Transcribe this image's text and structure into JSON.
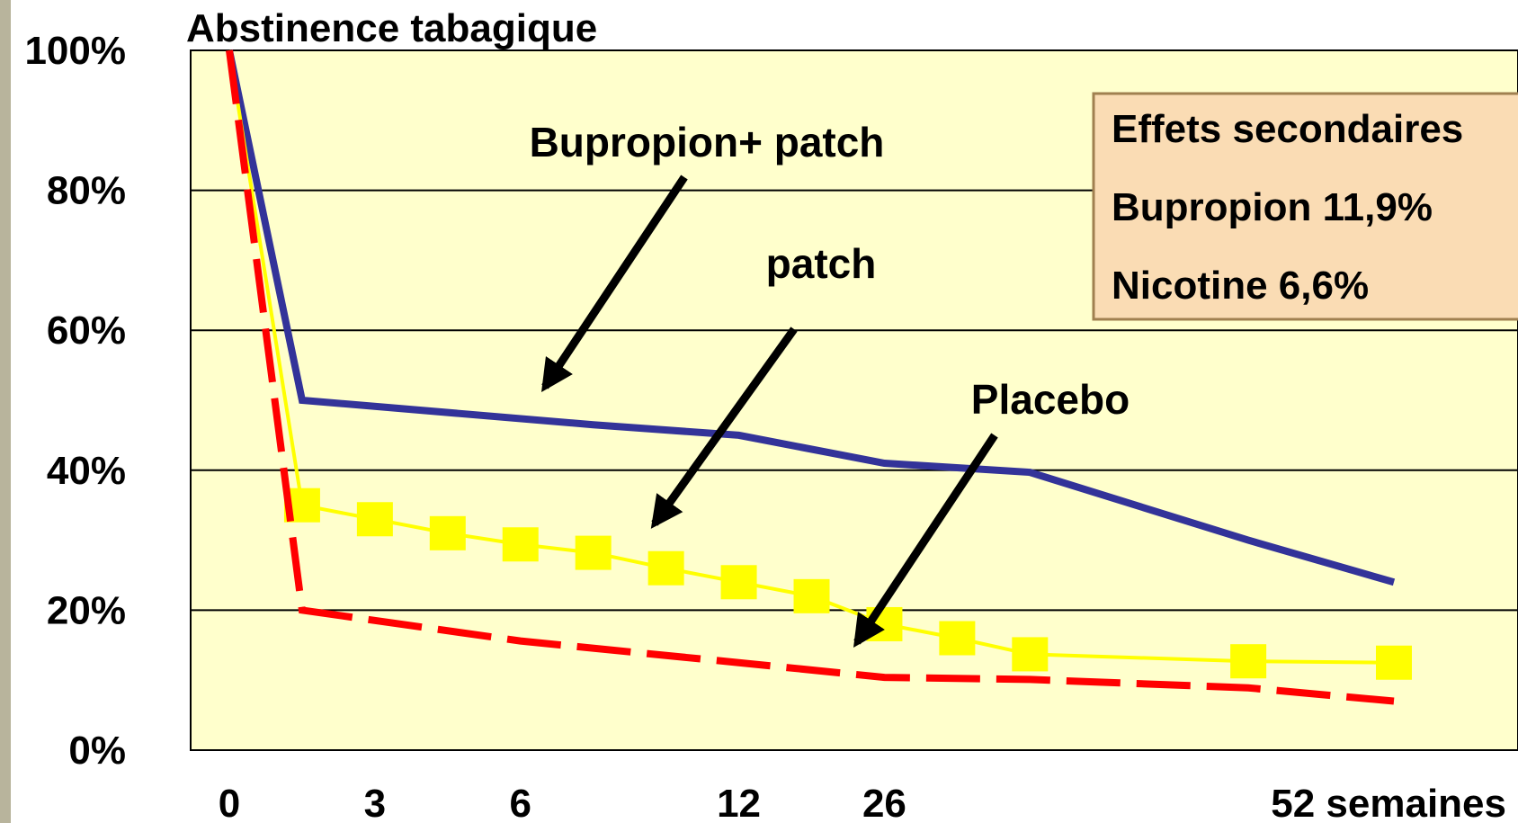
{
  "chart_data": {
    "type": "line",
    "title": "Abstinence tabagique",
    "ylim": [
      0,
      100
    ],
    "yticks": [
      {
        "value": 0,
        "label": "0%"
      },
      {
        "value": 20,
        "label": "20%"
      },
      {
        "value": 40,
        "label": "40%"
      },
      {
        "value": 60,
        "label": "60%"
      },
      {
        "value": 80,
        "label": "80%"
      },
      {
        "value": 100,
        "label": "100%"
      }
    ],
    "xlim": [
      0,
      16
    ],
    "xticks": [
      {
        "value": 0,
        "label": "0"
      },
      {
        "value": 2,
        "label": "3"
      },
      {
        "value": 4,
        "label": "6"
      },
      {
        "value": 7,
        "label": "12"
      },
      {
        "value": 9,
        "label": "26"
      },
      {
        "value": 16,
        "label": "52 semaines"
      }
    ],
    "grid": true,
    "series": [
      {
        "name": "Bupropion+ patch",
        "color": "#333399",
        "x": [
          0,
          1,
          5,
          7,
          9,
          11,
          14,
          16
        ],
        "values": [
          100,
          50,
          46.5,
          45,
          41,
          39.7,
          30,
          24
        ]
      },
      {
        "name": "patch",
        "color": "#ffff00",
        "marker": "square",
        "x": [
          0,
          1,
          2,
          3,
          4,
          5,
          6,
          7,
          8,
          9,
          10,
          11,
          14,
          16
        ],
        "values": [
          100,
          35,
          33,
          31,
          29.4,
          28.2,
          26,
          24,
          22,
          18,
          16,
          13.7,
          12.7,
          12.5
        ]
      },
      {
        "name": "Placebo",
        "color": "#ff0000",
        "dashed": true,
        "x": [
          0,
          1,
          4,
          7,
          9,
          11,
          14,
          16
        ],
        "values": [
          100,
          20,
          15.6,
          12.5,
          10.4,
          10.1,
          8.9,
          7
        ]
      }
    ],
    "annotations": [
      "Effets secondaires",
      "Bupropion 11,9%",
      "Nicotine 6,6%"
    ]
  }
}
